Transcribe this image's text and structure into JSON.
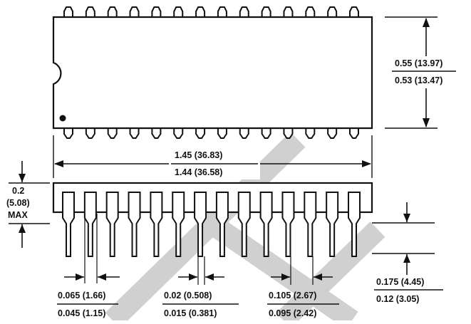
{
  "drawing": {
    "pin_count_per_side": 14,
    "top_view": {
      "width_max": "0.55 (13.97)",
      "width_min": "0.53 (13.47)"
    },
    "length": {
      "max": "1.45 (36.83)",
      "min": "1.44 (36.58)"
    },
    "height": {
      "l1": "0.2",
      "l2": "(5.08)",
      "l3": "MAX"
    },
    "lead_length": {
      "max": "0.175 (4.45)",
      "min": "0.12 (3.05)"
    },
    "lead_width_shoulder": {
      "max": "0.065 (1.66)",
      "min": "0.045 (1.15)"
    },
    "lead_width_tip": {
      "max": "0.02 (0.508)",
      "min": "0.015 (0.381)"
    },
    "pitch": {
      "max": "0.105 (2.67)",
      "min": "0.095 (2.42)"
    }
  },
  "colors": {
    "ink": "#111111",
    "watermark": "#d0d0d0"
  }
}
